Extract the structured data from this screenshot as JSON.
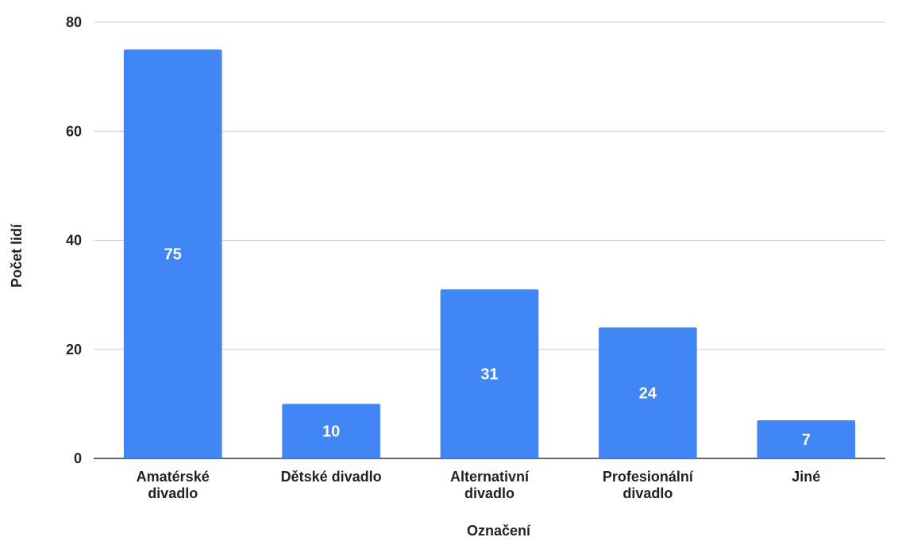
{
  "chart_data": {
    "type": "bar",
    "categories": [
      [
        "Amatérské",
        "divadlo"
      ],
      [
        "Dětské divadlo"
      ],
      [
        "Alternativní",
        "divadlo"
      ],
      [
        "Profesionální",
        "divadlo"
      ],
      [
        "Jiné"
      ]
    ],
    "values": [
      75,
      10,
      31,
      24,
      7
    ],
    "data_labels": [
      "75",
      "10",
      "31",
      "24",
      "7"
    ],
    "title": "",
    "xlabel": "Označení",
    "ylabel": "Počet lidí",
    "ylim": [
      0,
      80
    ],
    "yticks": [
      0,
      20,
      40,
      60,
      80
    ],
    "grid": true,
    "legend": "none",
    "bar_color": "#4285f4"
  }
}
